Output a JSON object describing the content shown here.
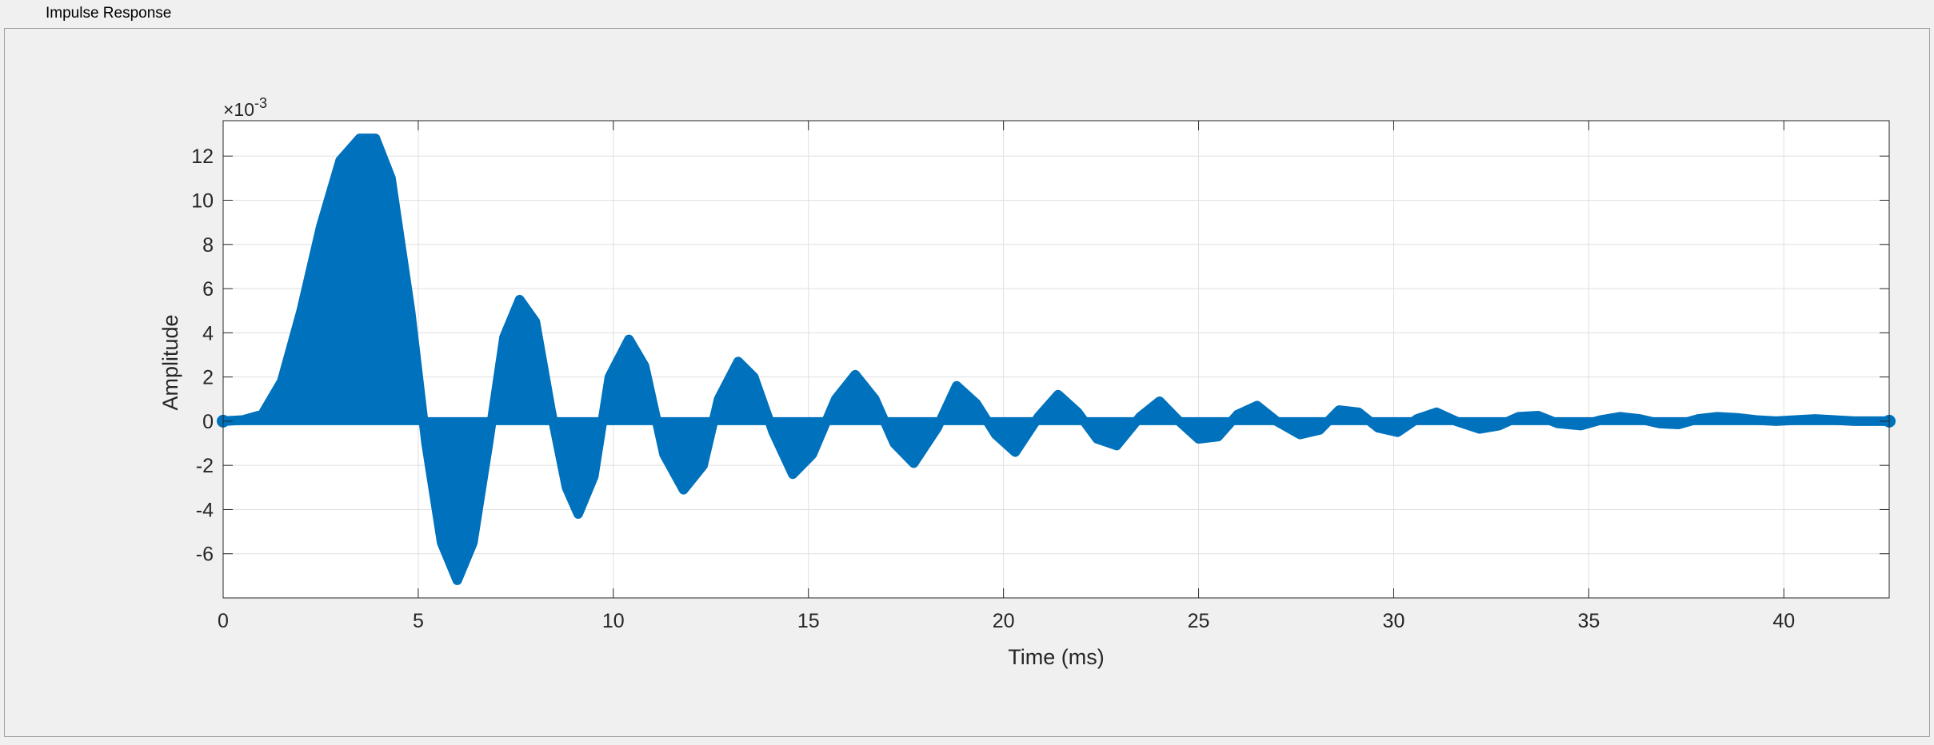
{
  "panel": {
    "title": "Impulse Response"
  },
  "chart_data": {
    "type": "line",
    "style": "stem",
    "title": "",
    "xlabel": "Time (ms)",
    "ylabel": "Amplitude",
    "y_exponent_label": "×10",
    "y_exponent_power": "-3",
    "xlim": [
      0,
      42.7
    ],
    "ylim": [
      -8,
      13.6
    ],
    "xticks": [
      0,
      5,
      10,
      15,
      20,
      25,
      30,
      35,
      40
    ],
    "xtick_labels": [
      "0",
      "5",
      "10",
      "15",
      "20",
      "25",
      "30",
      "35",
      "40"
    ],
    "yticks": [
      -6,
      -4,
      -2,
      0,
      2,
      4,
      6,
      8,
      10,
      12
    ],
    "ytick_labels": [
      "-6",
      "-4",
      "-2",
      "0",
      "2",
      "4",
      "6",
      "8",
      "10",
      "12"
    ],
    "grid": true,
    "color": "#0072bd",
    "series": [
      {
        "x": [
          0,
          0.5,
          1.0,
          1.5,
          2.0,
          2.5,
          3.0,
          3.5,
          3.9,
          4.3,
          4.8,
          5.2,
          5.6,
          6.0,
          6.4,
          6.8,
          7.2,
          7.6,
          8.0,
          8.4,
          8.8,
          9.1,
          9.5,
          9.9,
          10.4,
          10.8,
          11.3,
          11.8,
          12.3,
          12.7,
          13.2,
          13.6,
          14.1,
          14.6,
          15.1,
          15.7,
          16.2,
          16.7,
          17.2,
          17.7,
          18.3,
          18.8,
          19.3,
          19.8,
          20.3,
          20.9,
          21.4,
          21.9,
          22.4,
          22.9,
          23.5,
          24.0,
          24.5,
          25.0,
          25.5,
          26.0,
          26.5,
          27.0,
          27.6,
          28.1,
          28.6,
          29.1,
          29.6,
          30.1,
          30.6,
          31.1,
          31.6,
          32.2,
          32.7,
          33.2,
          33.7,
          34.2,
          34.8,
          35.3,
          35.8,
          36.3,
          36.8,
          37.3,
          37.8,
          38.3,
          38.8,
          39.3,
          39.8,
          40.3,
          40.8,
          41.3,
          41.8,
          42.3,
          42.7
        ],
        "values": [
          0.0,
          0.05,
          0.3,
          1.8,
          5.0,
          8.8,
          11.8,
          12.8,
          12.8,
          11.0,
          5.0,
          -1.0,
          -5.5,
          -7.2,
          -5.5,
          -1.0,
          3.8,
          5.5,
          4.5,
          0.5,
          -3.0,
          -4.2,
          -2.5,
          2.0,
          3.7,
          2.5,
          -1.5,
          -3.1,
          -2.0,
          1.0,
          2.7,
          2.0,
          -0.5,
          -2.4,
          -1.5,
          1.0,
          2.1,
          1.0,
          -1.0,
          -1.9,
          -0.3,
          1.6,
          0.8,
          -0.6,
          -1.4,
          0.2,
          1.2,
          0.4,
          -0.8,
          -1.1,
          0.2,
          0.9,
          0.0,
          -0.8,
          -0.7,
          0.3,
          0.7,
          0.0,
          -0.6,
          -0.4,
          0.5,
          0.4,
          -0.3,
          -0.5,
          0.1,
          0.4,
          0.0,
          -0.35,
          -0.2,
          0.2,
          0.25,
          -0.1,
          -0.2,
          0.05,
          0.2,
          0.1,
          -0.1,
          -0.15,
          0.1,
          0.2,
          0.15,
          0.05,
          0.0,
          0.05,
          0.1,
          0.05,
          0.0,
          0.0,
          0.0
        ]
      }
    ]
  }
}
